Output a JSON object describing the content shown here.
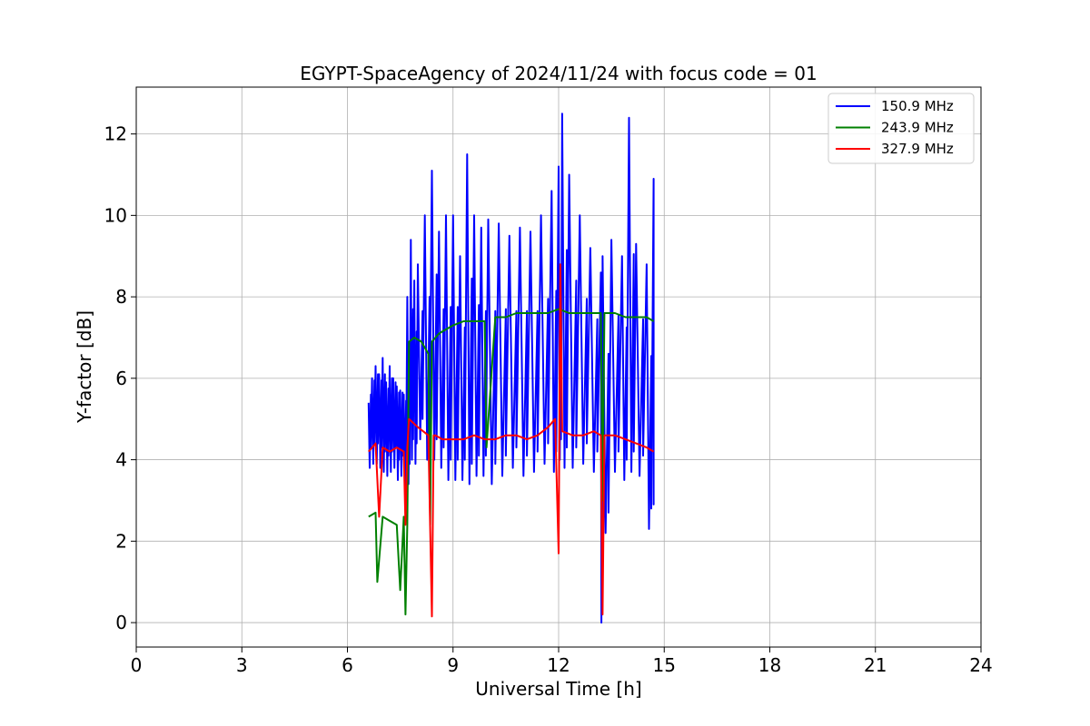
{
  "chart_data": {
    "type": "line",
    "title": "EGYPT-SpaceAgency of 2024/11/24 with focus code = 01",
    "xlabel": "Universal Time [h]",
    "ylabel": "Y-factor [dB]",
    "xlim": [
      0,
      24
    ],
    "ylim": [
      -0.6,
      13.15
    ],
    "xticks": [
      0,
      3,
      6,
      9,
      12,
      15,
      18,
      21,
      24
    ],
    "yticks": [
      0,
      2,
      4,
      6,
      8,
      10,
      12
    ],
    "grid": true,
    "legend_position": "top-right",
    "series": [
      {
        "name": "150.9 MHz",
        "color": "#0000ff",
        "x": [
          6.6,
          6.7,
          6.8,
          6.9,
          7.0,
          7.1,
          7.2,
          7.3,
          7.4,
          7.5,
          7.6,
          7.7,
          7.8,
          7.9,
          8.0,
          8.2,
          8.4,
          8.6,
          8.8,
          9.0,
          9.2,
          9.4,
          9.6,
          9.8,
          10.0,
          10.3,
          10.6,
          10.9,
          11.2,
          11.5,
          11.8,
          12.0,
          12.1,
          12.3,
          12.6,
          12.9,
          13.2,
          13.25,
          13.5,
          13.8,
          14.0,
          14.2,
          14.5,
          14.7
        ],
        "min": [
          3.8,
          3.9,
          3.9,
          3.8,
          3.7,
          3.6,
          3.7,
          3.8,
          3.5,
          3.6,
          3.3,
          3.4,
          4.0,
          3.9,
          4.5,
          4.0,
          4.0,
          3.8,
          3.5,
          3.5,
          3.5,
          3.4,
          3.6,
          3.6,
          3.4,
          3.6,
          3.8,
          3.6,
          3.7,
          3.9,
          3.7,
          4.0,
          3.8,
          3.8,
          3.9,
          3.7,
          0.0,
          2.2,
          3.7,
          3.5,
          3.7,
          3.6,
          2.3,
          2.9
        ],
        "max": [
          5.4,
          6.0,
          6.3,
          6.1,
          6.5,
          5.9,
          6.3,
          6.0,
          5.8,
          5.7,
          5.6,
          8.0,
          9.4,
          8.4,
          8.8,
          10.0,
          11.1,
          9.6,
          10.0,
          10.0,
          9.0,
          11.5,
          10.0,
          9.7,
          9.9,
          9.8,
          9.5,
          9.7,
          9.6,
          10.0,
          10.6,
          11.2,
          12.5,
          11.0,
          10.0,
          9.2,
          8.6,
          9.0,
          9.4,
          9.0,
          12.4,
          9.3,
          8.8,
          10.9
        ]
      },
      {
        "name": "243.9 MHz",
        "color": "#008000",
        "x": [
          6.6,
          6.8,
          6.85,
          7.0,
          7.2,
          7.4,
          7.5,
          7.6,
          7.65,
          7.7,
          7.75,
          7.9,
          8.1,
          8.3,
          8.35,
          8.4,
          8.6,
          8.8,
          9.0,
          9.3,
          9.6,
          9.9,
          9.95,
          10.2,
          10.5,
          10.8,
          11.1,
          11.4,
          11.7,
          12.0,
          12.3,
          12.6,
          12.9,
          13.2,
          13.25,
          13.3,
          13.6,
          13.9,
          14.2,
          14.5,
          14.7
        ],
        "values": [
          2.6,
          2.7,
          1.0,
          2.6,
          2.5,
          2.4,
          0.8,
          2.6,
          0.2,
          2.4,
          6.9,
          7.0,
          6.9,
          6.6,
          2.4,
          6.9,
          7.1,
          7.2,
          7.3,
          7.4,
          7.4,
          7.4,
          4.3,
          7.5,
          7.5,
          7.6,
          7.6,
          7.6,
          7.6,
          7.7,
          7.6,
          7.6,
          7.6,
          7.6,
          3.0,
          7.6,
          7.6,
          7.5,
          7.5,
          7.5,
          7.4
        ]
      },
      {
        "name": "327.9 MHz",
        "color": "#ff0000",
        "x": [
          6.6,
          6.8,
          6.9,
          7.0,
          7.2,
          7.4,
          7.6,
          7.65,
          7.7,
          7.75,
          8.0,
          8.3,
          8.4,
          8.45,
          8.5,
          8.7,
          9.0,
          9.3,
          9.6,
          9.9,
          10.2,
          10.5,
          10.8,
          11.1,
          11.4,
          11.7,
          11.9,
          12.0,
          12.05,
          12.1,
          12.4,
          12.7,
          13.0,
          13.2,
          13.25,
          13.3,
          13.6,
          13.9,
          14.2,
          14.5,
          14.7
        ],
        "values": [
          4.2,
          4.4,
          2.6,
          4.3,
          4.2,
          4.3,
          4.2,
          2.4,
          4.3,
          5.0,
          4.8,
          4.6,
          0.15,
          4.6,
          4.6,
          4.5,
          4.5,
          4.5,
          4.6,
          4.5,
          4.5,
          4.6,
          4.6,
          4.5,
          4.6,
          4.8,
          5.0,
          1.7,
          8.8,
          4.7,
          4.6,
          4.6,
          4.7,
          4.6,
          0.2,
          4.6,
          4.6,
          4.5,
          4.4,
          4.3,
          4.2
        ]
      }
    ]
  }
}
